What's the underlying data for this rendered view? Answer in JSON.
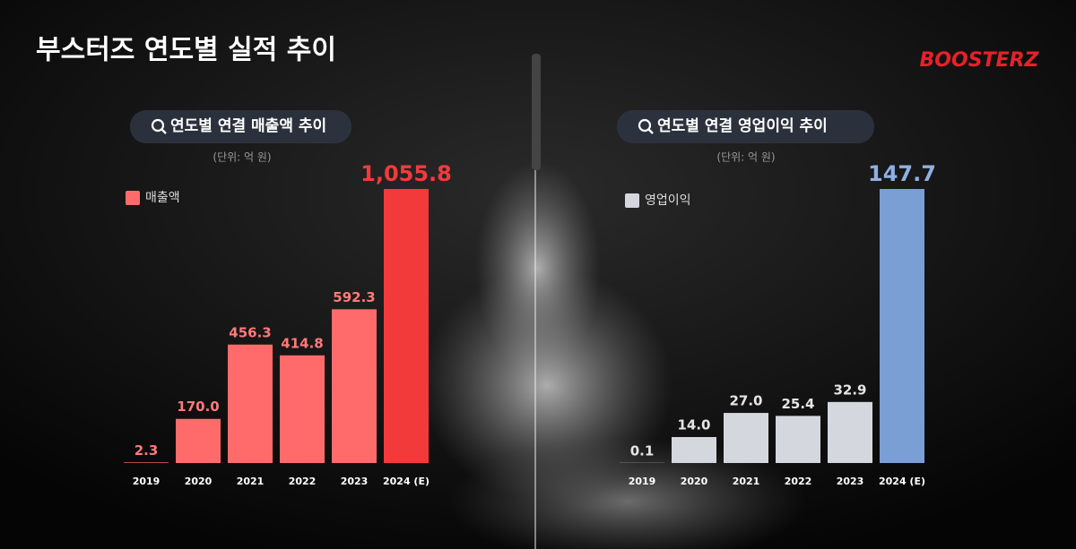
{
  "header": {
    "title": "부스터즈 연도별 실적 추이",
    "logo": "BOOSTERZ"
  },
  "chart_data": [
    {
      "type": "bar",
      "title": "연도별 연결 매출액 추이",
      "subtitle": "(단위: 억 원)",
      "categories": [
        "2019",
        "2020",
        "2021",
        "2022",
        "2023",
        "2024 (E)"
      ],
      "series": [
        {
          "name": "매출액",
          "color": "#ff6b6b",
          "colors": [
            "#ff6b6b",
            "#ff6b6b",
            "#ff6b6b",
            "#ff6b6b",
            "#ff6b6b",
            "#f33a3a"
          ],
          "label_colors": [
            "#ff7a7a",
            "#ff7a7a",
            "#ff7a7a",
            "#ff7a7a",
            "#ff7a7a",
            "#f33a3a"
          ],
          "values": [
            2.3,
            170.0,
            456.3,
            414.8,
            592.3,
            1055.8
          ],
          "value_labels": [
            "2.3",
            "170.0",
            "456.3",
            "414.8",
            "592.3",
            "1,055.8"
          ]
        }
      ]
    },
    {
      "type": "bar",
      "title": "연도별 연결 영업이익 추이",
      "subtitle": "(단위: 억 원)",
      "categories": [
        "2019",
        "2020",
        "2021",
        "2022",
        "2023",
        "2024 (E)"
      ],
      "series": [
        {
          "name": "영업이익",
          "color": "#d4d7de",
          "colors": [
            "#d4d7de",
            "#d4d7de",
            "#d4d7de",
            "#d4d7de",
            "#d4d7de",
            "#7a9fd4"
          ],
          "label_colors": [
            "#e6e6e6",
            "#e6e6e6",
            "#e6e6e6",
            "#e6e6e6",
            "#e6e6e6",
            "#8fb0e3"
          ],
          "values": [
            0.1,
            14.0,
            27.0,
            25.4,
            32.9,
            147.7
          ],
          "value_labels": [
            "0.1",
            "14.0",
            "27.0",
            "25.4",
            "32.9",
            "147.7"
          ]
        }
      ]
    }
  ]
}
